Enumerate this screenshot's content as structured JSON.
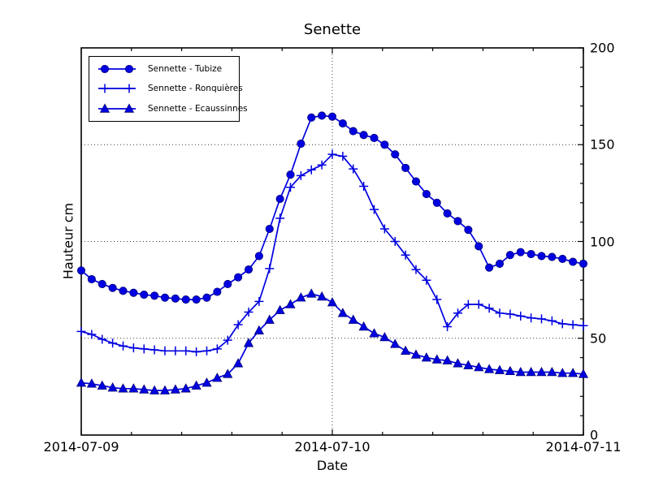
{
  "chart_data": {
    "type": "line",
    "title": "Senette",
    "xlabel": "Date",
    "ylabel": "Hauteur cm",
    "line_color": "#0000e0",
    "marker_edge_color": "#00006e",
    "legend_position": "upper left",
    "grid": "dotted horizontal lines at 50/100/150; dotted vertical line at 2014-07-10",
    "ylim": [
      0,
      200
    ],
    "x_start": "2014-07-09 00:00",
    "x_end": "2014-07-11 00:00",
    "x_step": "1 hour",
    "x_hours_max": 48,
    "x_tick_labels": [
      "2014-07-09",
      "2014-07-10",
      "2014-07-11"
    ],
    "y_tick_labels": [
      "0",
      "50",
      "100",
      "150",
      "200"
    ],
    "y_tick_values": [
      0,
      50,
      100,
      150,
      200
    ],
    "y_grid_values": [
      50,
      100,
      150
    ],
    "x_major_hours": [
      0,
      24,
      48
    ],
    "x_grid_hours": [
      24
    ],
    "x_minor_step_hours": 4.8,
    "y_minor_step": 10,
    "series": [
      {
        "name": "Sennette - Tubize",
        "marker": "circle",
        "values": [
          85,
          80.5,
          78,
          76,
          74.5,
          73.5,
          72.5,
          72,
          71,
          70.5,
          70,
          70,
          71,
          74,
          78,
          81.5,
          85.5,
          92.5,
          106.5,
          122,
          134.5,
          150.5,
          164,
          165,
          164.5,
          161,
          157,
          155,
          153.5,
          150,
          145,
          138,
          131,
          124.5,
          120,
          114.5,
          110.5,
          106,
          97.5,
          86.5,
          88.5,
          93,
          94.5,
          93.5,
          92.5,
          92,
          91,
          89.5,
          88.5
        ]
      },
      {
        "name": "Sennette - Ronquières",
        "marker": "plus",
        "values": [
          53.5,
          52,
          49.5,
          47.5,
          46,
          45,
          44.5,
          44,
          43.5,
          43.5,
          43.5,
          43,
          43.5,
          44.5,
          49,
          57,
          63.5,
          69,
          86,
          112,
          128,
          134,
          137,
          139.5,
          145,
          144,
          137.5,
          128.5,
          116.5,
          106.5,
          100,
          93,
          85.5,
          80,
          70,
          56,
          63,
          67.5,
          67.5,
          65.5,
          63,
          62.5,
          61.5,
          60.5,
          60,
          59,
          57.5,
          57,
          56.5
        ]
      },
      {
        "name": "Sennette - Ecaussinnes",
        "marker": "triangle",
        "values": [
          27,
          26.5,
          25.5,
          24.5,
          24,
          24,
          23.5,
          23,
          23,
          23.5,
          24,
          25.5,
          27,
          29.5,
          31.5,
          37,
          47.5,
          54,
          59.5,
          64.5,
          67.5,
          71,
          73,
          71.5,
          68.5,
          63,
          59.5,
          56,
          52.5,
          50.5,
          47,
          43.5,
          41.5,
          40,
          39,
          38.5,
          37,
          36,
          35,
          34,
          33.5,
          33,
          32.5,
          32.5,
          32.5,
          32.5,
          32,
          32,
          31.5
        ]
      }
    ]
  }
}
